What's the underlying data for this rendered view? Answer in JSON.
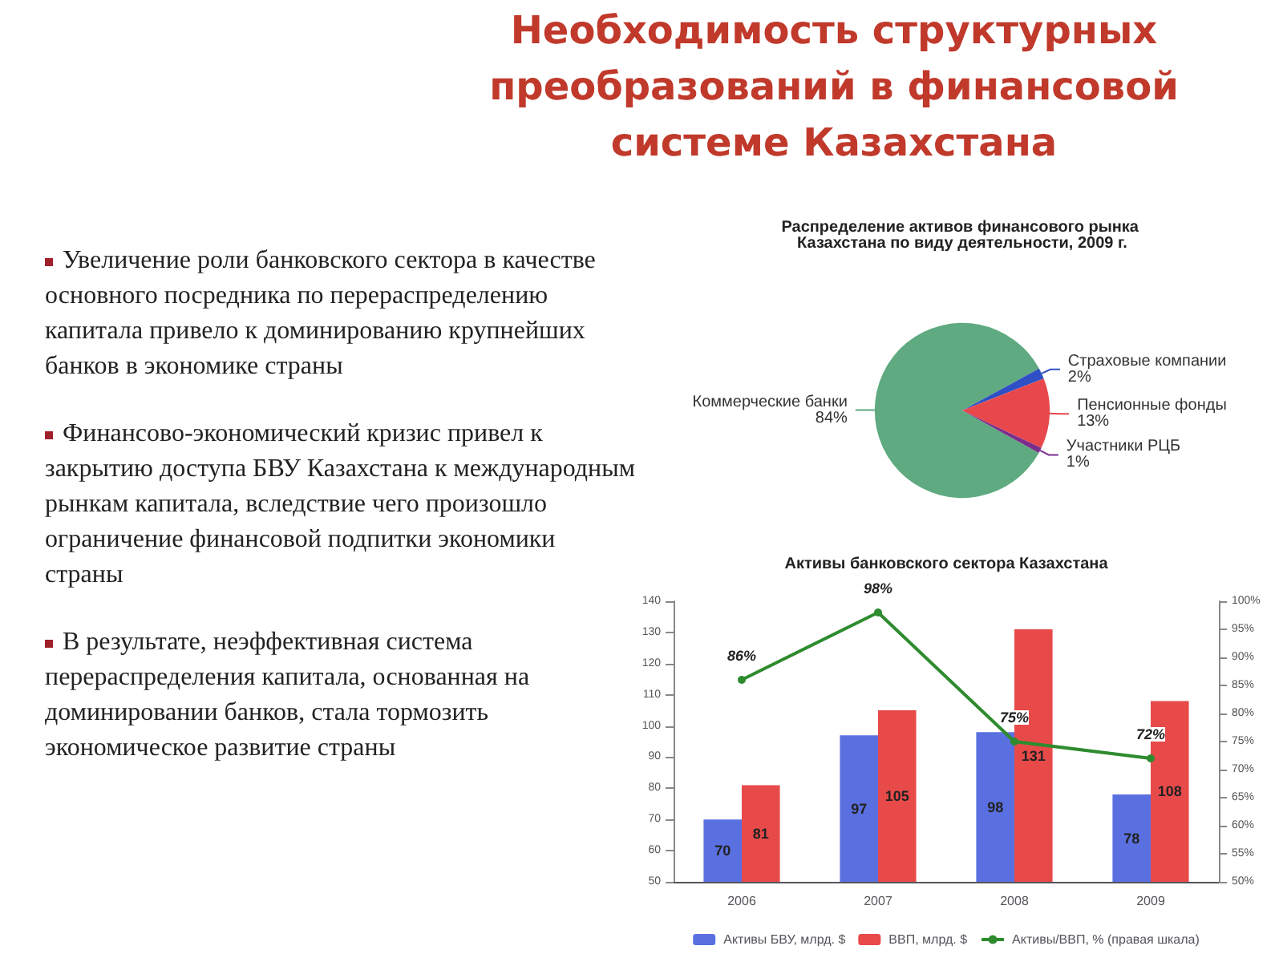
{
  "chart_data": [
    {
      "type": "other",
      "title": "Необходимость структурных преобразований в финансовой системе Казахстана",
      "annotations": [
        "Увеличение роли банковского сектора в качестве основного посредника по перераспределению капитала привело к доминированию крупнейших банков в экономике страны",
        "Финансово-экономический кризис привел к закрытию доступа БВУ Казахстана к международным рынкам капитала, вследствие чего произошло ограничение финансовой подпитки экономики страны",
        "В результате, неэффективная система перераспределения капитала, основанная на доминировании банков, стала тормозить экономическое развитие страны"
      ]
    },
    {
      "type": "pie",
      "title": "Распределение активов финансового рынка Казахстана по виду деятельности, 2009 г.",
      "categories": [
        "Коммерческие банки",
        "Страховые компании",
        "Пенсионные фонды",
        "Участники РЦБ"
      ],
      "values": [
        84,
        2,
        13,
        1
      ],
      "value_labels": [
        "84%",
        "2%",
        "13%",
        "1%"
      ],
      "colors": [
        "#5faa80",
        "#2f4fc4",
        "#e8484b",
        "#7b2d8c"
      ]
    },
    {
      "type": "bar",
      "title": "Активы банковского сектора Казахстана",
      "categories": [
        "2006",
        "2007",
        "2008",
        "2009"
      ],
      "data_labels": true,
      "legend": "bottom",
      "ylim": [
        50,
        140
      ],
      "yticks": [
        50,
        60,
        70,
        80,
        90,
        100,
        110,
        120,
        130,
        140
      ],
      "y2lim": [
        50,
        100
      ],
      "y2ticks": [
        {
          "value": 50,
          "label": "50%"
        },
        {
          "value": 55,
          "label": "55%"
        },
        {
          "value": 60,
          "label": "60%"
        },
        {
          "value": 65,
          "label": "65%"
        },
        {
          "value": 70,
          "label": "70%"
        },
        {
          "value": 75,
          "label": "75%"
        },
        {
          "value": 80,
          "label": "80%"
        },
        {
          "value": 85,
          "label": "85%"
        },
        {
          "value": 90,
          "label": "90%"
        },
        {
          "value": 95,
          "label": "95%"
        },
        {
          "value": 100,
          "label": "100%"
        }
      ],
      "series": [
        {
          "name": "Активы БВУ, млрд. $",
          "color": "#5a70e0",
          "values": [
            70,
            97,
            98,
            78
          ]
        },
        {
          "name": "ВВП, млрд. $",
          "color": "#e84a4a",
          "values": [
            81,
            105,
            131,
            108
          ]
        },
        {
          "type": "line",
          "axis": "y2",
          "name": "Активы/ВВП, % (правая шкала)",
          "color": "#2e8b2e",
          "marker": "circle",
          "values": [
            86,
            98,
            75,
            72
          ],
          "value_labels": [
            "86%",
            "98%",
            "75%",
            "72%"
          ]
        }
      ]
    }
  ]
}
